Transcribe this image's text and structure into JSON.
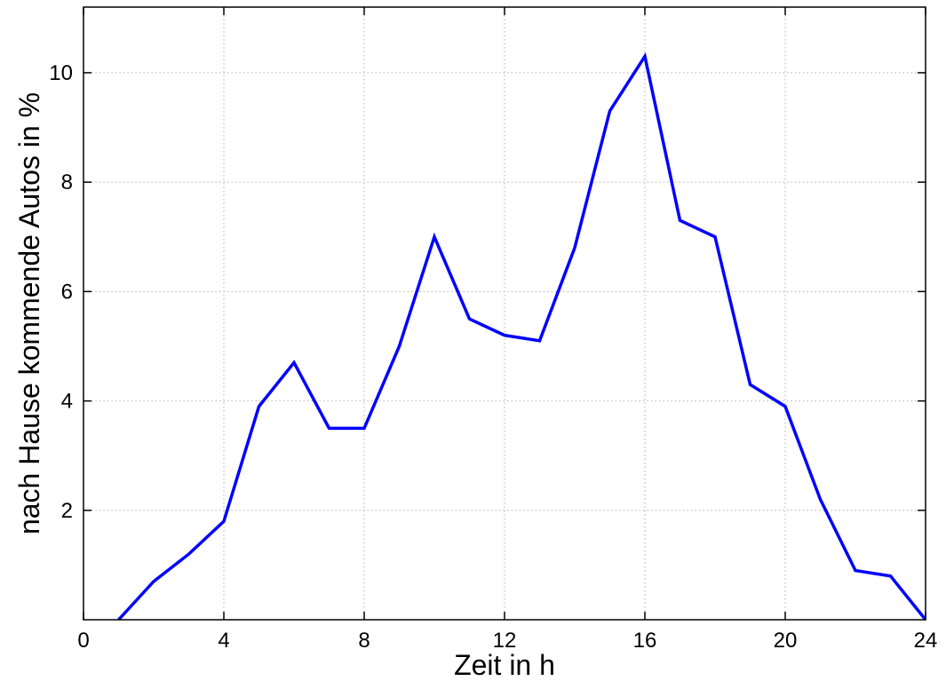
{
  "chart_data": {
    "type": "line",
    "title": "",
    "xlabel": "Zeit in h",
    "ylabel": "nach Hause kommende Autos in %",
    "xlim": [
      0,
      24
    ],
    "ylim": [
      0,
      11.2
    ],
    "xticks": [
      0,
      4,
      8,
      12,
      16,
      20,
      24
    ],
    "yticks": [
      2,
      4,
      6,
      8,
      10
    ],
    "grid": true,
    "series": [
      {
        "color": "#0000ff",
        "x": [
          1,
          2,
          3,
          4,
          5,
          6,
          7,
          8,
          9,
          10,
          11,
          12,
          13,
          14,
          15,
          16,
          17,
          18,
          19,
          20,
          21,
          22,
          23,
          24
        ],
        "values": [
          0.0,
          0.7,
          1.2,
          1.8,
          3.9,
          4.7,
          3.5,
          3.5,
          5.0,
          7.0,
          5.5,
          5.2,
          5.1,
          6.8,
          9.3,
          10.3,
          7.3,
          7.0,
          4.3,
          3.9,
          2.2,
          0.9,
          0.8,
          0.0
        ]
      }
    ]
  }
}
